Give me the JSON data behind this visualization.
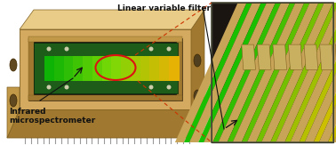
{
  "fig_width": 3.78,
  "fig_height": 1.63,
  "dpi": 100,
  "bg_color": "#ffffff",
  "label_lvf": "Linear variable filter",
  "label_ims": "Infrared\nmicrospectrometer",
  "gold_light": "#d4aa60",
  "gold_mid": "#c09848",
  "gold_dark": "#a07830",
  "gold_shadow": "#806020",
  "gold_top": "#e8cc88",
  "pcb_dark": "#1a4a1a",
  "pcb_mid": "#1e5c1a",
  "filter_colors": [
    "#22cc44",
    "#44ee22",
    "#66ee22",
    "#88ee22",
    "#aaee22",
    "#ccee22",
    "#eedd22",
    "#ffcc11"
  ],
  "dark_bg": "#1a1510",
  "zoom_bg": "#1a1510",
  "red_circle": "#dd1111",
  "dash_color": "#cc3300",
  "arrow_color": "#111111",
  "pin_color": "#999999"
}
